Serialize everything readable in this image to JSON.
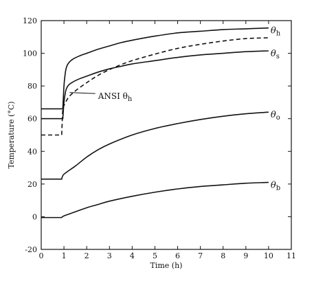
{
  "chart_data": {
    "type": "line",
    "xlabel": "Time  (h)",
    "ylabel": "Temperature  (°C)",
    "xlim": [
      0,
      11
    ],
    "ylim": [
      -20,
      120
    ],
    "xticks": [
      0,
      1,
      2,
      3,
      4,
      5,
      6,
      7,
      8,
      9,
      10,
      11
    ],
    "yticks": [
      -20,
      0,
      20,
      40,
      60,
      80,
      100,
      120
    ],
    "grid": false,
    "series": [
      {
        "name": "θh",
        "label_main": "θ",
        "label_sub": "h",
        "style": "solid",
        "x": [
          0,
          0.95,
          1.0,
          1.05,
          1.1,
          1.2,
          1.4,
          1.7,
          2,
          2.5,
          3,
          3.5,
          4,
          5,
          6,
          7,
          8,
          9,
          10
        ],
        "y": [
          66,
          66,
          80,
          87,
          91,
          94,
          96.5,
          98.5,
          100,
          102.5,
          104.5,
          106.5,
          108,
          110.5,
          112.5,
          113.5,
          114.5,
          115,
          115.5
        ]
      },
      {
        "name": "θs",
        "label_main": "θ",
        "label_sub": "s",
        "style": "solid",
        "x": [
          0,
          0.95,
          1.0,
          1.05,
          1.1,
          1.2,
          1.4,
          1.7,
          2,
          2.5,
          3,
          3.5,
          4,
          5,
          6,
          7,
          8,
          9,
          10
        ],
        "y": [
          60,
          60,
          70,
          75,
          78,
          80.5,
          82.5,
          84.5,
          86,
          88.5,
          90.5,
          92,
          93.5,
          95.5,
          97.5,
          99,
          100,
          101,
          101.5
        ]
      },
      {
        "name": "ANSI θh",
        "label_main": "ANSI θ",
        "label_sub": "h",
        "style": "dashed",
        "x": [
          0,
          0.9,
          0.95,
          1.0,
          1.2,
          1.5,
          2,
          2.5,
          3,
          3.5,
          4,
          5,
          6,
          7,
          8,
          9,
          10
        ],
        "y": [
          50,
          50,
          66,
          68,
          73,
          77,
          82,
          86.5,
          90,
          93,
          95.5,
          99.5,
          103,
          105.5,
          107.5,
          109,
          109.5
        ]
      },
      {
        "name": "θo",
        "label_main": "θ",
        "label_sub": "o",
        "style": "solid",
        "x": [
          0,
          0.9,
          1.0,
          1.5,
          2,
          2.5,
          3,
          4,
          5,
          6,
          7,
          8,
          9,
          10
        ],
        "y": [
          23,
          23,
          26,
          31,
          36.5,
          41,
          44.5,
          50,
          54,
          57,
          59.5,
          61.5,
          63,
          64
        ]
      },
      {
        "name": "θb",
        "label_main": "θ",
        "label_sub": "b",
        "style": "solid",
        "x": [
          0,
          0.9,
          1.0,
          1.5,
          2,
          2.5,
          3,
          4,
          5,
          6,
          7,
          8,
          9,
          10
        ],
        "y": [
          -0.5,
          -0.5,
          0.5,
          3,
          5.5,
          7.5,
          9.5,
          12.5,
          15,
          17,
          18.5,
          19.5,
          20.5,
          21
        ]
      }
    ]
  }
}
